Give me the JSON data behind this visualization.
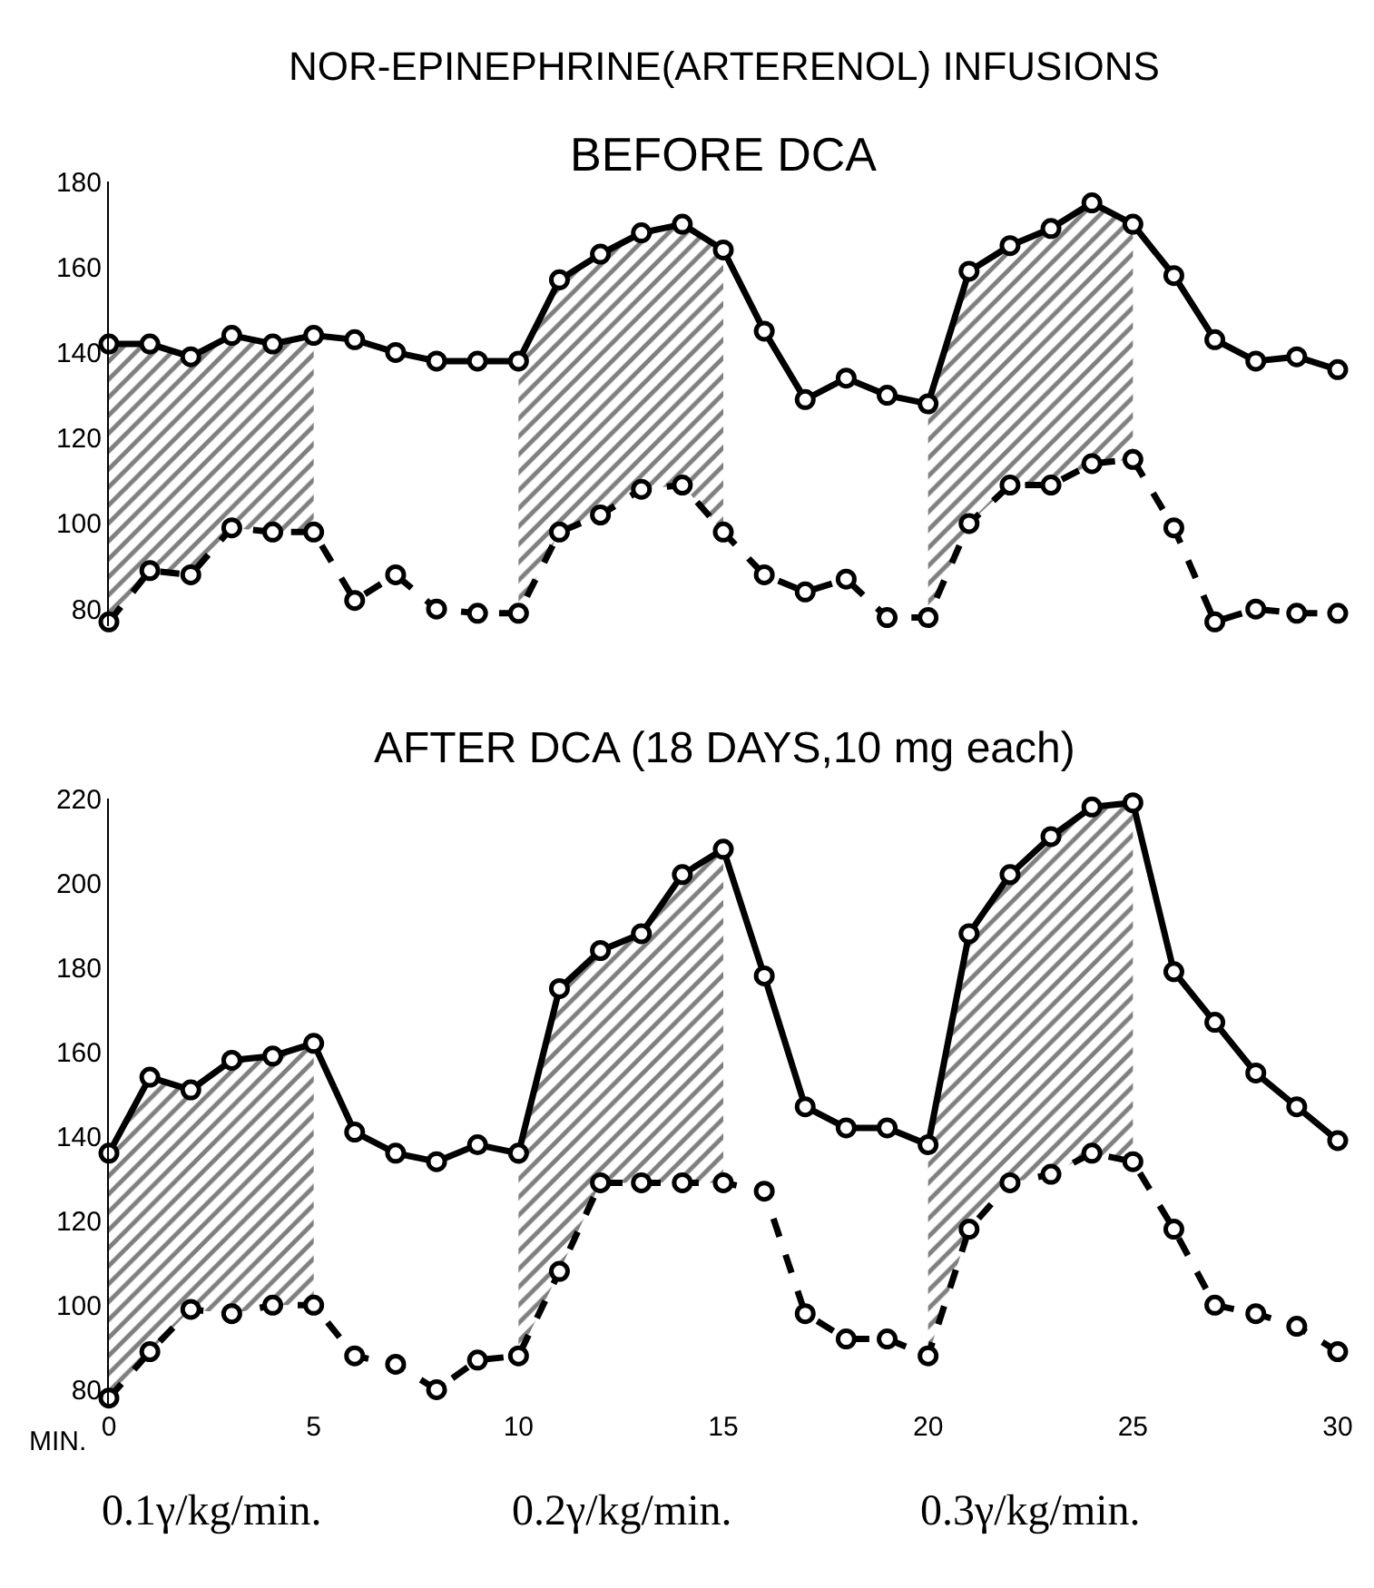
{
  "chart_data": [
    {
      "type": "line",
      "title": "NOR-EPINEPHRINE(ARTERENOL) INFUSIONS",
      "subtitle": "BEFORE DCA",
      "x": [
        0,
        1,
        2,
        3,
        4,
        5,
        6,
        7,
        8,
        9,
        10,
        11,
        12,
        13,
        14,
        15,
        16,
        17,
        18,
        19,
        20,
        21,
        22,
        23,
        24,
        25,
        26,
        27,
        28,
        29,
        30
      ],
      "series": [
        {
          "color": "#000000",
          "line_style": "solid",
          "values": [
            142,
            142,
            139,
            144,
            142,
            144,
            143,
            140,
            138,
            138,
            138,
            157,
            163,
            168,
            170,
            164,
            145,
            129,
            134,
            130,
            128,
            159,
            165,
            169,
            175,
            170,
            158,
            143,
            138,
            139,
            136
          ],
          "upper": [
            142,
            142,
            139,
            144,
            142,
            144,
            null,
            null,
            null,
            null,
            138,
            157,
            163,
            168,
            170,
            164,
            null,
            null,
            null,
            null,
            128,
            159,
            165,
            169,
            175,
            170,
            null,
            null,
            null,
            null,
            null
          ],
          "lower": [
            77,
            89,
            88,
            99,
            98,
            98,
            null,
            null,
            null,
            null,
            79,
            98,
            102,
            108,
            109,
            98,
            null,
            null,
            null,
            null,
            78,
            100,
            109,
            109,
            114,
            115,
            null,
            null,
            null,
            null,
            null
          ]
        },
        {
          "color": "#000000",
          "line_style": "dashed",
          "values": [
            77,
            89,
            88,
            99,
            98,
            98,
            82,
            88,
            80,
            79,
            79,
            98,
            102,
            108,
            109,
            98,
            88,
            84,
            87,
            78,
            78,
            100,
            109,
            109,
            114,
            115,
            99,
            77,
            80,
            79,
            79
          ]
        }
      ],
      "xlim": [
        0,
        30
      ],
      "xticks": [
        0,
        5,
        10,
        15,
        20,
        25,
        30
      ],
      "ylim": [
        76,
        180
      ],
      "yticks": [
        80,
        100,
        120,
        140,
        160,
        180
      ],
      "tick_labels": "y",
      "marker": "circle"
    },
    {
      "type": "line",
      "title": "AFTER DCA (18 DAYS,10 mg each)",
      "xlabel": "MIN.",
      "annotations": [
        "0.1γ/kg/min.",
        "0.2γ/kg/min.",
        "0.3γ/kg/min."
      ],
      "x": [
        0,
        1,
        2,
        3,
        4,
        5,
        6,
        7,
        8,
        9,
        10,
        11,
        12,
        13,
        14,
        15,
        16,
        17,
        18,
        19,
        20,
        21,
        22,
        23,
        24,
        25,
        26,
        27,
        28,
        29,
        30
      ],
      "series": [
        {
          "color": "#000000",
          "line_style": "solid",
          "values": [
            136,
            154,
            151,
            158,
            159,
            162,
            141,
            136,
            134,
            138,
            136,
            175,
            184,
            188,
            202,
            208,
            178,
            147,
            142,
            142,
            138,
            188,
            202,
            211,
            218,
            219,
            179,
            167,
            155,
            147,
            139
          ],
          "upper": [
            136,
            154,
            151,
            158,
            159,
            162,
            null,
            null,
            null,
            null,
            136,
            175,
            184,
            188,
            202,
            208,
            null,
            null,
            null,
            null,
            138,
            188,
            202,
            211,
            218,
            219,
            null,
            null,
            null,
            null,
            null
          ],
          "lower": [
            78,
            89,
            99,
            98,
            100,
            100,
            null,
            null,
            null,
            null,
            88,
            108,
            129,
            129,
            129,
            129,
            null,
            null,
            null,
            null,
            88,
            118,
            129,
            131,
            136,
            134,
            null,
            null,
            null,
            null,
            null
          ]
        },
        {
          "color": "#000000",
          "line_style": "dashed",
          "values": [
            78,
            89,
            99,
            98,
            100,
            100,
            88,
            86,
            80,
            87,
            88,
            108,
            129,
            129,
            129,
            129,
            127,
            98,
            92,
            92,
            88,
            118,
            129,
            131,
            136,
            134,
            118,
            100,
            98,
            95,
            89
          ]
        }
      ],
      "xlim": [
        0,
        30
      ],
      "xticks": [
        0,
        5,
        10,
        15,
        20,
        25,
        30
      ],
      "ylim": [
        76,
        220
      ],
      "yticks": [
        80,
        100,
        120,
        140,
        160,
        180,
        200,
        220
      ],
      "marker": "circle"
    }
  ]
}
